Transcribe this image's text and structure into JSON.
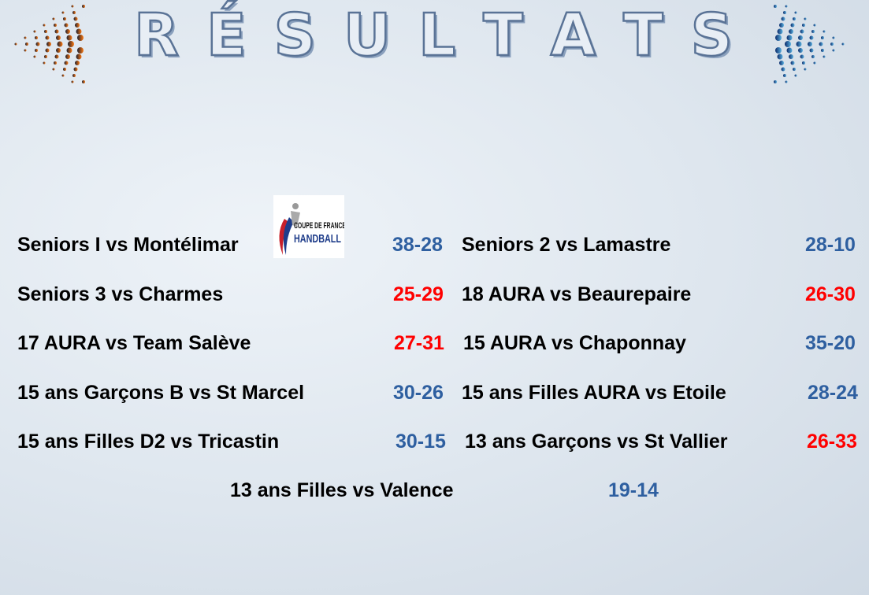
{
  "title": "RÉSULTATS",
  "colors": {
    "win": "#2e5fa0",
    "loss": "#ff0000"
  },
  "logo": {
    "text1": "COUPE DE FRANCE",
    "text2": "HANDBALL"
  },
  "results": [
    {
      "match": "Seniors I vs Montélimar",
      "score": "38-28",
      "outcome": "win"
    },
    {
      "match": "Seniors 2 vs Lamastre",
      "score": "28-10",
      "outcome": "win"
    },
    {
      "match": "Seniors 3 vs Charmes",
      "score": "25-29",
      "outcome": "loss"
    },
    {
      "match": "18 AURA vs Beaurepaire",
      "score": "26-30",
      "outcome": "loss"
    },
    {
      "match": "17 AURA vs Team Salève",
      "score": "27-31",
      "outcome": "loss"
    },
    {
      "match": "15 AURA vs Chaponnay",
      "score": "35-20",
      "outcome": "win"
    },
    {
      "match": "15 ans Garçons B vs St Marcel",
      "score": "30-26",
      "outcome": "win"
    },
    {
      "match": "15 ans Filles AURA vs Etoile",
      "score": "28-24",
      "outcome": "win"
    },
    {
      "match": "15 ans Filles D2 vs Tricastin",
      "score": "30-15",
      "outcome": "win"
    },
    {
      "match": "13 ans Garçons vs St Vallier",
      "score": "26-33",
      "outcome": "loss"
    },
    {
      "match": "13 ans Filles vs Valence",
      "score": "19-14",
      "outcome": "win"
    }
  ]
}
